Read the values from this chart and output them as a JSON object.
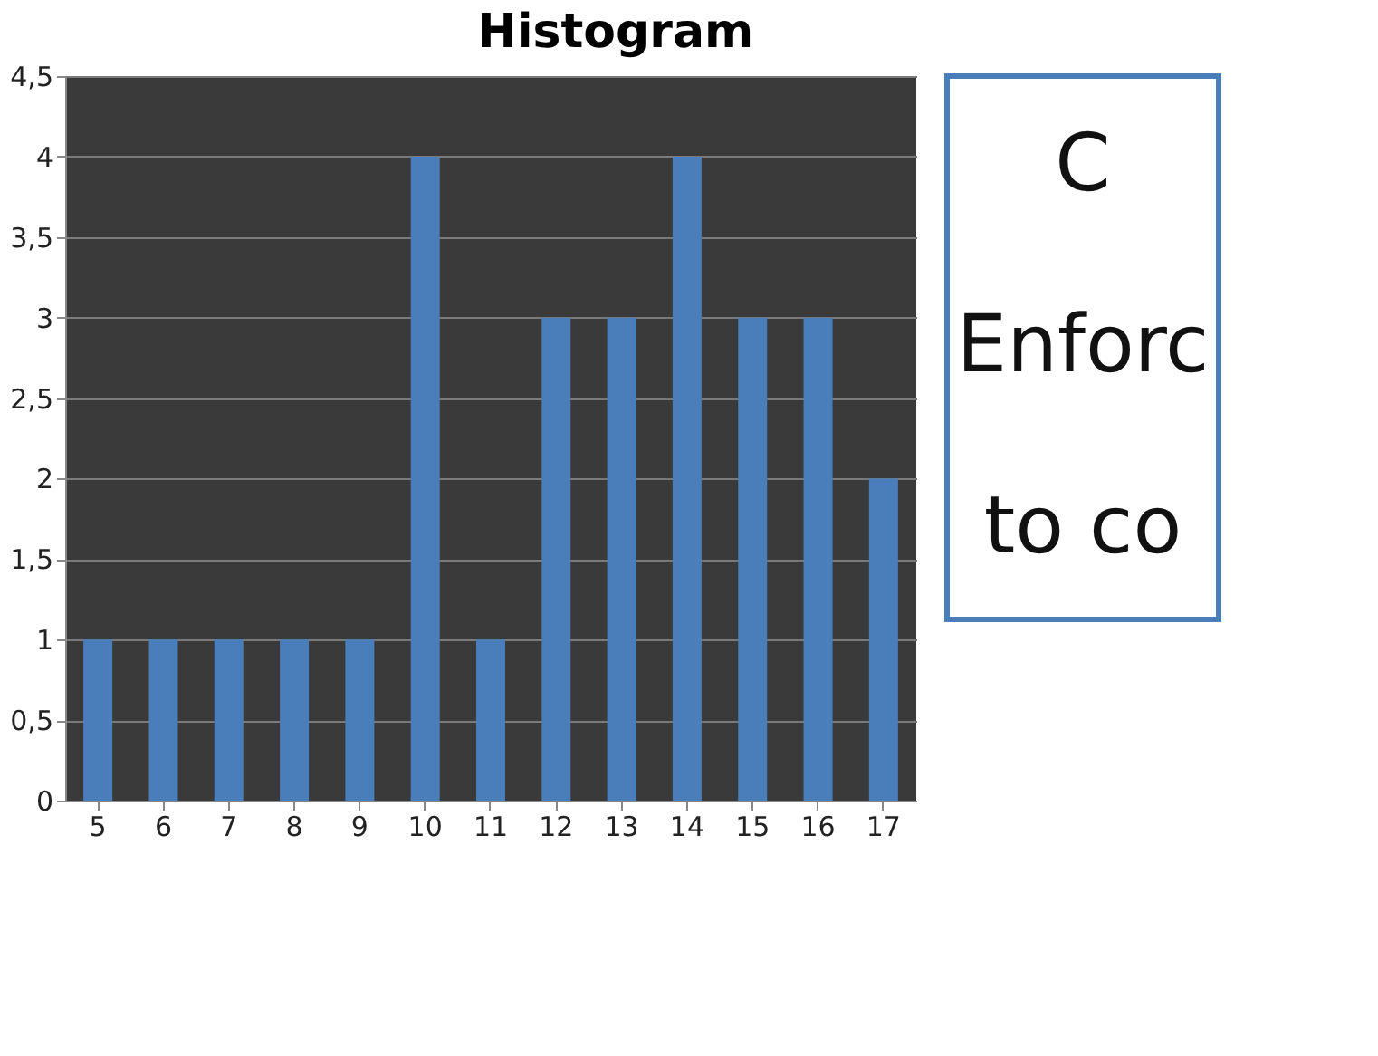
{
  "chart_data": {
    "type": "bar",
    "title": "Histogram",
    "categories": [
      "5",
      "6",
      "7",
      "8",
      "9",
      "10",
      "11",
      "12",
      "13",
      "14",
      "15",
      "16",
      "17"
    ],
    "values": [
      1,
      1,
      1,
      1,
      1,
      4,
      1,
      3,
      3,
      4,
      3,
      3,
      2
    ],
    "color": "#4a7ebb",
    "ylim": [
      0,
      4.5
    ],
    "yticks": [
      0,
      {
        "value": 0.5,
        "label": "0,5"
      },
      1,
      {
        "value": 1.5,
        "label": "1,5"
      },
      2,
      {
        "value": 2.5,
        "label": "2,5"
      },
      3,
      {
        "value": 3.5,
        "label": "3,5"
      },
      4,
      {
        "value": 4.5,
        "label": "4,5"
      }
    ],
    "grid": "y",
    "annotations": [
      "C",
      "Enforc",
      "to co"
    ]
  }
}
